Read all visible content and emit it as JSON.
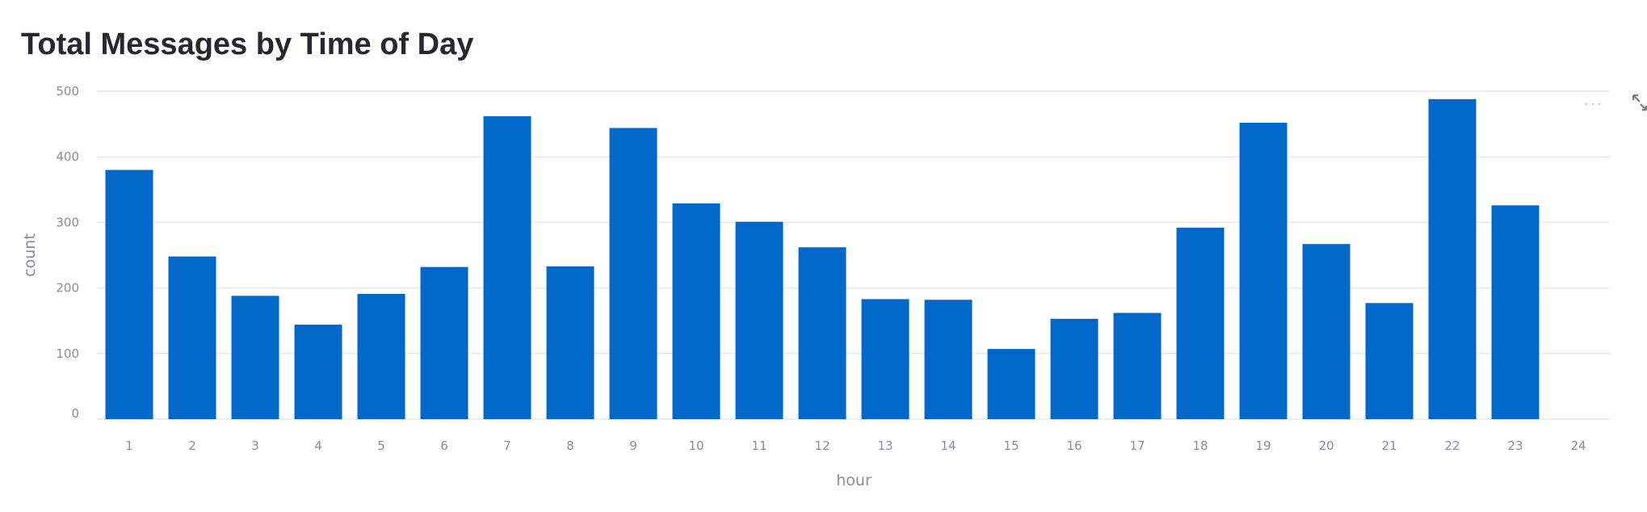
{
  "chart_data": {
    "type": "bar",
    "title": "Total Messages by Time of Day",
    "xlabel": "hour",
    "ylabel": "count",
    "x_ticks": [
      "1",
      "2",
      "3",
      "4",
      "5",
      "6",
      "7",
      "8",
      "9",
      "10",
      "11",
      "12",
      "13",
      "14",
      "15",
      "16",
      "17",
      "18",
      "19",
      "20",
      "21",
      "22",
      "23",
      "24"
    ],
    "categories": [
      1,
      2,
      3,
      4,
      5,
      6,
      7,
      8,
      9,
      10,
      11,
      12,
      13,
      14,
      15,
      16,
      17,
      18,
      19,
      20,
      21,
      22,
      23
    ],
    "values": [
      380,
      248,
      188,
      144,
      191,
      232,
      462,
      233,
      444,
      329,
      301,
      262,
      183,
      182,
      107,
      153,
      162,
      292,
      452,
      267,
      177,
      488,
      326
    ],
    "y_ticks": [
      0,
      100,
      200,
      300,
      400,
      500
    ],
    "ylim": [
      0,
      500
    ],
    "grid": true,
    "bar_color": "#0068c9"
  },
  "toolbar": {
    "menu_icon": "more-horizontal-icon",
    "expand_icon": "fullscreen-expand-icon"
  }
}
